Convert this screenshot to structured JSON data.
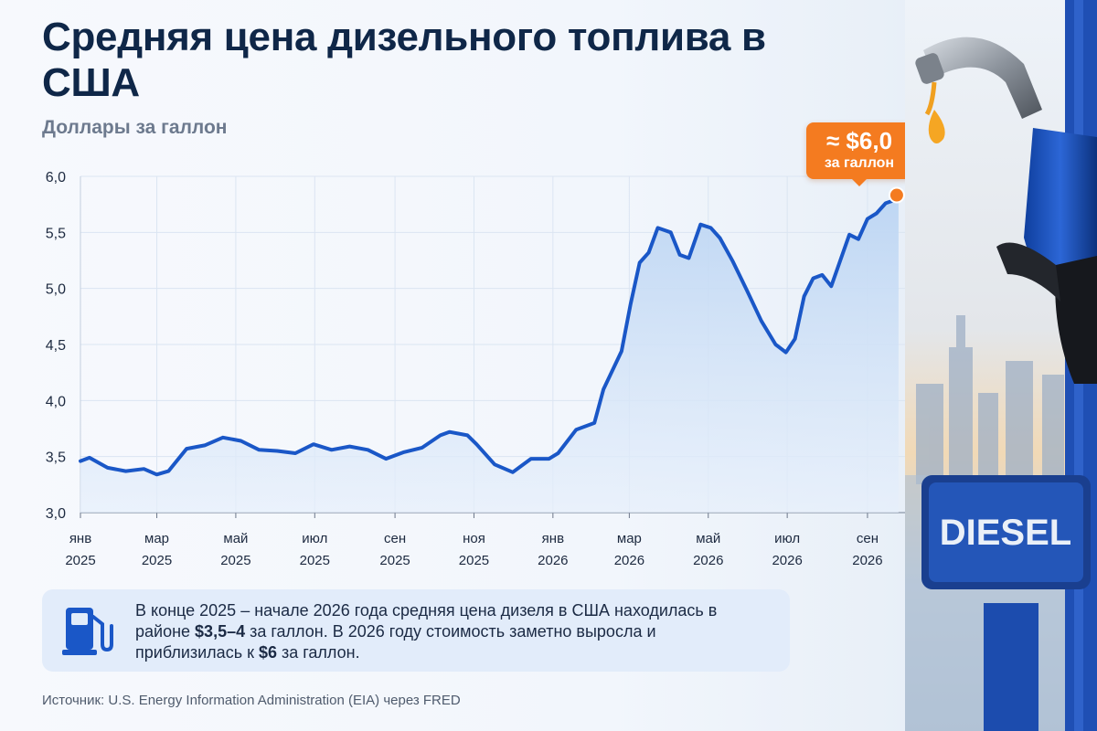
{
  "title": "Средняя цена дизельного топлива в США",
  "subtitle": "Доллары за галлон",
  "callout": {
    "value": "≈ $6,0",
    "unit": "за галлон"
  },
  "note": {
    "text_1": "В конце 2025 – начале 2026 года средняя цена дизеля в США находилась в районе ",
    "bold_1": "$3,5–4",
    "text_2": " за галлон. В 2026 году стоимость заметно выросла и приблизилась к ",
    "bold_2": "$6",
    "text_3": " за галлон."
  },
  "source": "Источник: U.S. Energy Information Administration (EIA) через FRED",
  "sign_text": "DIESEL",
  "colors": {
    "line": "#1a57c7",
    "area": "#cfe1f7",
    "accent": "#f47b20",
    "title": "#0f2748"
  },
  "icons": [
    "fuel-pump-icon"
  ],
  "chart_data": {
    "type": "area",
    "title": "Средняя цена дизельного топлива в США",
    "ylabel": "Доллары за галлон",
    "xlabel": "",
    "ylim": [
      3.0,
      6.0
    ],
    "y_ticks": [
      "3,0",
      "3,5",
      "4,0",
      "4,5",
      "5,0",
      "5,5",
      "6,0"
    ],
    "x_ticks": [
      {
        "month": "янв",
        "year": "2025"
      },
      {
        "month": "мар",
        "year": "2025"
      },
      {
        "month": "май",
        "year": "2025"
      },
      {
        "month": "июл",
        "year": "2025"
      },
      {
        "month": "сен",
        "year": "2025"
      },
      {
        "month": "ноя",
        "year": "2025"
      },
      {
        "month": "янв",
        "year": "2026"
      },
      {
        "month": "мар",
        "year": "2026"
      },
      {
        "month": "май",
        "year": "2026"
      },
      {
        "month": "июл",
        "year": "2026"
      },
      {
        "month": "сен",
        "year": "2026"
      }
    ],
    "grid": true,
    "series": [
      {
        "x": [
          "2025-01-01",
          "2025-01-08",
          "2025-01-22",
          "2025-02-05",
          "2025-02-19",
          "2025-03-01",
          "2025-03-10",
          "2025-03-24",
          "2025-04-07",
          "2025-04-21",
          "2025-05-05",
          "2025-05-19",
          "2025-06-02",
          "2025-06-16",
          "2025-06-30",
          "2025-07-14",
          "2025-07-28",
          "2025-08-11",
          "2025-08-25",
          "2025-09-08",
          "2025-09-22",
          "2025-10-06",
          "2025-10-13",
          "2025-10-27",
          "2025-11-03",
          "2025-11-17",
          "2025-12-01",
          "2025-12-15",
          "2025-12-29",
          "2026-01-05",
          "2026-01-19",
          "2026-02-02",
          "2026-02-09",
          "2026-02-23",
          "2026-03-02",
          "2026-03-09",
          "2026-03-16",
          "2026-03-23",
          "2026-04-02",
          "2026-04-09",
          "2026-04-16",
          "2026-04-25",
          "2026-05-03",
          "2026-05-10",
          "2026-05-20",
          "2026-05-31",
          "2026-06-11",
          "2026-06-22",
          "2026-06-30",
          "2026-07-07",
          "2026-07-14",
          "2026-07-21",
          "2026-07-28",
          "2026-08-04",
          "2026-08-11",
          "2026-08-18",
          "2026-08-25",
          "2026-09-01",
          "2026-09-08",
          "2026-09-15",
          "2026-09-25"
        ],
        "values": [
          3.46,
          3.49,
          3.4,
          3.37,
          3.39,
          3.34,
          3.37,
          3.57,
          3.6,
          3.67,
          3.64,
          3.56,
          3.55,
          3.53,
          3.61,
          3.56,
          3.59,
          3.56,
          3.48,
          3.54,
          3.58,
          3.69,
          3.72,
          3.69,
          3.61,
          3.43,
          3.36,
          3.48,
          3.48,
          3.53,
          3.74,
          3.8,
          4.1,
          4.44,
          4.86,
          5.23,
          5.32,
          5.54,
          5.5,
          5.3,
          5.27,
          5.57,
          5.54,
          5.45,
          5.24,
          4.98,
          4.71,
          4.5,
          4.43,
          4.55,
          4.93,
          5.09,
          5.12,
          5.02,
          5.25,
          5.48,
          5.44,
          5.62,
          5.67,
          5.76,
          5.8
        ]
      }
    ]
  }
}
